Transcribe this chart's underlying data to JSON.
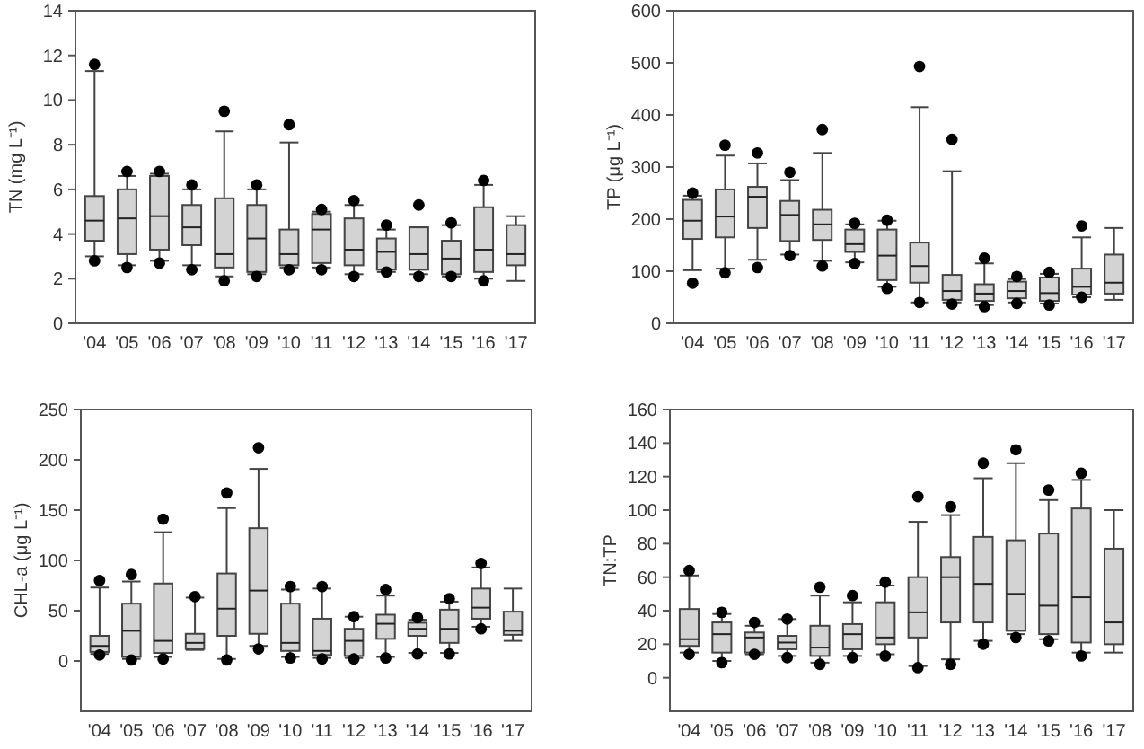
{
  "chart_data": [
    {
      "type": "box",
      "ylabel": "TN (mg L⁻¹)",
      "categories": [
        "'04",
        "'05",
        "'06",
        "'07",
        "'08",
        "'09",
        "'10",
        "'11",
        "'12",
        "'13",
        "'14",
        "'15",
        "'16",
        "'17"
      ],
      "ylim": [
        0,
        14
      ],
      "yticks": [
        0,
        2,
        4,
        6,
        8,
        10,
        12,
        14
      ],
      "color": "#d3d3d3",
      "boxes": [
        {
          "low": 3.0,
          "q1": 3.7,
          "median": 4.6,
          "q3": 5.7,
          "high": 11.3,
          "outliers": [
            11.6,
            2.8
          ]
        },
        {
          "low": 2.6,
          "q1": 3.1,
          "median": 4.7,
          "q3": 6.0,
          "high": 6.6,
          "outliers": [
            6.8,
            2.5
          ]
        },
        {
          "low": 2.8,
          "q1": 3.3,
          "median": 4.8,
          "q3": 6.6,
          "high": 6.7,
          "outliers": [
            6.8,
            2.7
          ]
        },
        {
          "low": 2.6,
          "q1": 3.5,
          "median": 4.3,
          "q3": 5.3,
          "high": 6.0,
          "outliers": [
            6.2,
            2.4
          ]
        },
        {
          "low": 2.1,
          "q1": 2.5,
          "median": 3.1,
          "q3": 5.6,
          "high": 8.6,
          "outliers": [
            9.5,
            1.9
          ]
        },
        {
          "low": 2.2,
          "q1": 2.3,
          "median": 3.8,
          "q3": 5.3,
          "high": 6.0,
          "outliers": [
            6.2,
            2.1
          ]
        },
        {
          "low": 2.5,
          "q1": 2.6,
          "median": 3.1,
          "q3": 4.2,
          "high": 8.1,
          "outliers": [
            8.9,
            2.4
          ]
        },
        {
          "low": 2.5,
          "q1": 2.7,
          "median": 4.2,
          "q3": 4.9,
          "high": 5.0,
          "outliers": [
            5.1,
            2.4
          ]
        },
        {
          "low": 2.2,
          "q1": 2.6,
          "median": 3.3,
          "q3": 4.7,
          "high": 5.3,
          "outliers": [
            5.5,
            2.1
          ]
        },
        {
          "low": 2.3,
          "q1": 2.4,
          "median": 3.2,
          "q3": 3.8,
          "high": 4.2,
          "outliers": [
            4.4,
            2.3
          ]
        },
        {
          "low": 2.2,
          "q1": 2.4,
          "median": 3.1,
          "q3": 4.3,
          "high": 4.3,
          "outliers": [
            5.3,
            2.1
          ]
        },
        {
          "low": 2.1,
          "q1": 2.2,
          "median": 2.9,
          "q3": 3.7,
          "high": 4.4,
          "outliers": [
            4.5,
            2.1
          ]
        },
        {
          "low": 2.0,
          "q1": 2.3,
          "median": 3.3,
          "q3": 5.2,
          "high": 6.2,
          "outliers": [
            6.4,
            1.9
          ]
        },
        {
          "low": 1.9,
          "q1": 2.6,
          "median": 3.1,
          "q3": 4.4,
          "high": 4.8
        }
      ]
    },
    {
      "type": "box",
      "ylabel": "TP (μg L⁻¹)",
      "categories": [
        "'04",
        "'05",
        "'06",
        "'07",
        "'08",
        "'09",
        "'10",
        "'11",
        "'12",
        "'13",
        "'14",
        "'15",
        "'16",
        "'17"
      ],
      "ylim": [
        0,
        600
      ],
      "yticks": [
        0,
        100,
        200,
        300,
        400,
        500,
        600
      ],
      "color": "#d3d3d3",
      "boxes": [
        {
          "low": 102,
          "q1": 162,
          "median": 197,
          "q3": 237,
          "high": 245,
          "outliers": [
            250,
            77
          ]
        },
        {
          "low": 105,
          "q1": 165,
          "median": 205,
          "q3": 257,
          "high": 322,
          "outliers": [
            342,
            97
          ]
        },
        {
          "low": 122,
          "q1": 183,
          "median": 243,
          "q3": 262,
          "high": 307,
          "outliers": [
            327,
            107
          ]
        },
        {
          "low": 132,
          "q1": 158,
          "median": 208,
          "q3": 235,
          "high": 275,
          "outliers": [
            290,
            130
          ]
        },
        {
          "low": 120,
          "q1": 160,
          "median": 190,
          "q3": 218,
          "high": 327,
          "outliers": [
            372,
            110
          ]
        },
        {
          "low": 117,
          "q1": 137,
          "median": 152,
          "q3": 180,
          "high": 190,
          "outliers": [
            192,
            115
          ]
        },
        {
          "low": 70,
          "q1": 83,
          "median": 130,
          "q3": 180,
          "high": 197,
          "outliers": [
            198,
            67
          ]
        },
        {
          "low": 40,
          "q1": 78,
          "median": 110,
          "q3": 155,
          "high": 415,
          "outliers": [
            493,
            40
          ]
        },
        {
          "low": 40,
          "q1": 45,
          "median": 62,
          "q3": 93,
          "high": 292,
          "outliers": [
            353,
            37
          ]
        },
        {
          "low": 35,
          "q1": 43,
          "median": 57,
          "q3": 75,
          "high": 115,
          "outliers": [
            125,
            32
          ]
        },
        {
          "low": 40,
          "q1": 48,
          "median": 62,
          "q3": 80,
          "high": 85,
          "outliers": [
            90,
            38
          ]
        },
        {
          "low": 38,
          "q1": 43,
          "median": 58,
          "q3": 88,
          "high": 95,
          "outliers": [
            98,
            35
          ]
        },
        {
          "low": 50,
          "q1": 55,
          "median": 70,
          "q3": 105,
          "high": 165,
          "outliers": [
            187,
            50
          ]
        },
        {
          "low": 45,
          "q1": 57,
          "median": 78,
          "q3": 132,
          "high": 183
        }
      ]
    },
    {
      "type": "box",
      "ylabel": "CHL-a (μg L⁻¹)",
      "categories": [
        "'04",
        "'05",
        "'06",
        "'07",
        "'08",
        "'09",
        "'10",
        "'11",
        "'12",
        "'13",
        "'14",
        "'15",
        "'16",
        "'17"
      ],
      "ylim": [
        -50,
        250
      ],
      "yticks": [
        0,
        50,
        100,
        150,
        200,
        250
      ],
      "color": "#d3d3d3",
      "boxes": [
        {
          "low": 7,
          "q1": 9,
          "median": 15,
          "q3": 25,
          "high": 73,
          "outliers": [
            80,
            6
          ]
        },
        {
          "low": 2,
          "q1": 4,
          "median": 30,
          "q3": 57,
          "high": 79,
          "outliers": [
            86,
            1
          ]
        },
        {
          "low": 4,
          "q1": 8,
          "median": 20,
          "q3": 77,
          "high": 128,
          "outliers": [
            141,
            2
          ]
        },
        {
          "low": 11,
          "q1": 12,
          "median": 18,
          "q3": 27,
          "high": 63,
          "outliers": [
            64
          ]
        },
        {
          "low": 2,
          "q1": 25,
          "median": 52,
          "q3": 87,
          "high": 152,
          "outliers": [
            167,
            1
          ]
        },
        {
          "low": 15,
          "q1": 27,
          "median": 70,
          "q3": 132,
          "high": 191,
          "outliers": [
            212,
            12
          ]
        },
        {
          "low": 4,
          "q1": 10,
          "median": 18,
          "q3": 57,
          "high": 71,
          "outliers": [
            74,
            3
          ]
        },
        {
          "low": 3,
          "q1": 6,
          "median": 10,
          "q3": 42,
          "high": 72,
          "outliers": [
            74,
            2
          ]
        },
        {
          "low": 3,
          "q1": 5,
          "median": 20,
          "q3": 32,
          "high": 44,
          "outliers": [
            44,
            2
          ]
        },
        {
          "low": 4,
          "q1": 22,
          "median": 37,
          "q3": 46,
          "high": 65,
          "outliers": [
            71,
            3
          ]
        },
        {
          "low": 8,
          "q1": 25,
          "median": 32,
          "q3": 38,
          "high": 41,
          "outliers": [
            43,
            7
          ]
        },
        {
          "low": 8,
          "q1": 18,
          "median": 32,
          "q3": 51,
          "high": 59,
          "outliers": [
            62,
            7
          ]
        },
        {
          "low": 34,
          "q1": 42,
          "median": 53,
          "q3": 72,
          "high": 93,
          "outliers": [
            97,
            32
          ]
        },
        {
          "low": 20,
          "q1": 26,
          "median": 30,
          "q3": 49,
          "high": 72
        }
      ]
    },
    {
      "type": "box",
      "ylabel": "TN:TP",
      "categories": [
        "'04",
        "'05",
        "'06",
        "'07",
        "'08",
        "'09",
        "'10",
        "'11",
        "'12",
        "'13",
        "'14",
        "'15",
        "'16",
        "'17"
      ],
      "ylim": [
        -20,
        160
      ],
      "yticks": [
        0,
        20,
        40,
        60,
        80,
        100,
        120,
        140,
        160
      ],
      "color": "#d3d3d3",
      "boxes": [
        {
          "low": 15,
          "q1": 19,
          "median": 23,
          "q3": 41,
          "high": 61,
          "outliers": [
            64,
            14
          ]
        },
        {
          "low": 10,
          "q1": 15,
          "median": 26,
          "q3": 33,
          "high": 38,
          "outliers": [
            39,
            9
          ]
        },
        {
          "low": 14,
          "q1": 15,
          "median": 24,
          "q3": 27,
          "high": 31,
          "outliers": [
            33,
            14
          ]
        },
        {
          "low": 13,
          "q1": 17,
          "median": 21,
          "q3": 25,
          "high": 35,
          "outliers": [
            35,
            12
          ]
        },
        {
          "low": 9,
          "q1": 13,
          "median": 18,
          "q3": 31,
          "high": 49,
          "outliers": [
            54,
            8
          ]
        },
        {
          "low": 13,
          "q1": 17,
          "median": 26,
          "q3": 32,
          "high": 45,
          "outliers": [
            49,
            12
          ]
        },
        {
          "low": 14,
          "q1": 20,
          "median": 24,
          "q3": 45,
          "high": 55,
          "outliers": [
            57,
            13
          ]
        },
        {
          "low": 7,
          "q1": 24,
          "median": 39,
          "q3": 60,
          "high": 93,
          "outliers": [
            108,
            6
          ]
        },
        {
          "low": 11,
          "q1": 33,
          "median": 60,
          "q3": 72,
          "high": 97,
          "outliers": [
            102,
            8
          ]
        },
        {
          "low": 22,
          "q1": 33,
          "median": 56,
          "q3": 84,
          "high": 119,
          "outliers": [
            128,
            20
          ]
        },
        {
          "low": 26,
          "q1": 28,
          "median": 50,
          "q3": 82,
          "high": 128,
          "outliers": [
            136,
            24
          ]
        },
        {
          "low": 23,
          "q1": 26,
          "median": 43,
          "q3": 86,
          "high": 106,
          "outliers": [
            112,
            22
          ]
        },
        {
          "low": 15,
          "q1": 21,
          "median": 48,
          "q3": 101,
          "high": 118,
          "outliers": [
            122,
            13
          ]
        },
        {
          "low": 15,
          "q1": 20,
          "median": 33,
          "q3": 77,
          "high": 100
        }
      ]
    }
  ]
}
